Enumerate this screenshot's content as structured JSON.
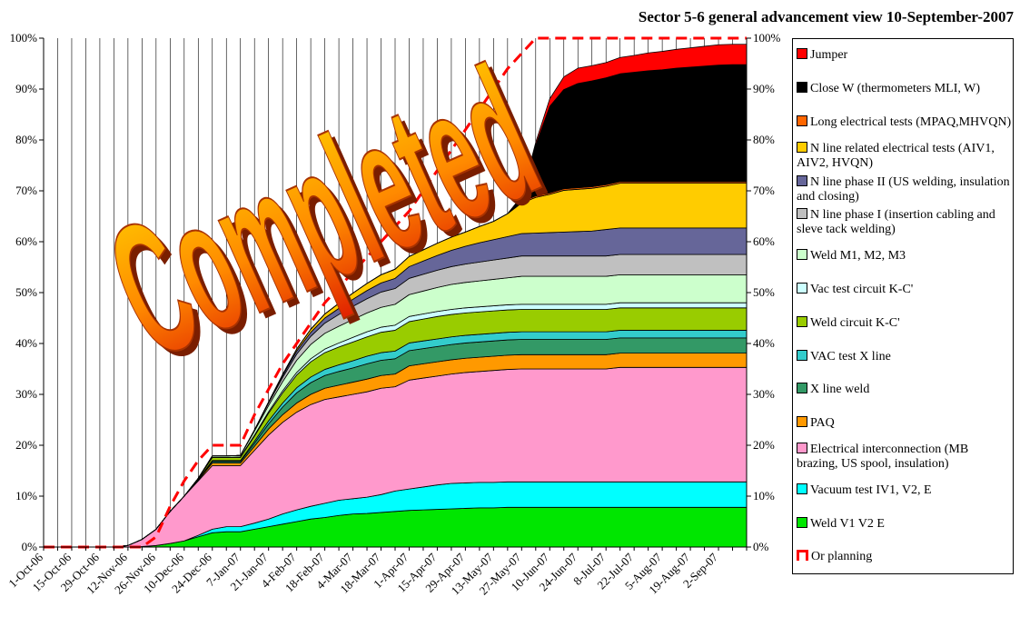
{
  "chart_data": {
    "type": "stacked_area",
    "title": "Sector 5-6 general advancement view 10-September-2007",
    "annotation": "Completed",
    "categories": [
      "1-Oct-06",
      null,
      "15-Oct-06",
      null,
      "29-Oct-06",
      null,
      "12-Nov-06",
      null,
      "26-Nov-06",
      null,
      "10-Dec-06",
      null,
      "24-Dec-06",
      null,
      "7-Jan-07",
      null,
      "21-Jan-07",
      null,
      "4-Feb-07",
      null,
      "18-Feb-07",
      null,
      "4-Mar-07",
      null,
      "18-Mar-07",
      null,
      "1-Apr-07",
      null,
      "15-Apr-07",
      null,
      "29-Apr-07",
      null,
      "13-May-07",
      null,
      "27-May-07",
      null,
      "10-Jun-07",
      null,
      "24-Jun-07",
      null,
      "8-Jul-07",
      null,
      "22-Jul-07",
      null,
      "5-Aug-07",
      null,
      "19-Aug-07",
      null,
      "2-Sep-07",
      null,
      null
    ],
    "ylim": [
      0,
      100
    ],
    "yticks": [
      {
        "value": 0,
        "label": "0%"
      },
      {
        "value": 10,
        "label": "10%"
      },
      {
        "value": 20,
        "label": "20%"
      },
      {
        "value": 30,
        "label": "30%"
      },
      {
        "value": 40,
        "label": "40%"
      },
      {
        "value": 50,
        "label": "50%"
      },
      {
        "value": 60,
        "label": "60%"
      },
      {
        "value": 70,
        "label": "70%"
      },
      {
        "value": 80,
        "label": "80%"
      },
      {
        "value": 90,
        "label": "90%"
      },
      {
        "value": 100,
        "label": "100%"
      }
    ],
    "y2lim": [
      0,
      100
    ],
    "y2ticks": [
      {
        "value": 0,
        "label": "0%"
      },
      {
        "value": 10,
        "label": "10%"
      },
      {
        "value": 20,
        "label": "20%"
      },
      {
        "value": 30,
        "label": "30%"
      },
      {
        "value": 40,
        "label": "40%"
      },
      {
        "value": 50,
        "label": "50%"
      },
      {
        "value": 60,
        "label": "60%"
      },
      {
        "value": 70,
        "label": "70%"
      },
      {
        "value": 80,
        "label": "80%"
      },
      {
        "value": 90,
        "label": "90%"
      },
      {
        "value": 100,
        "label": "100%"
      }
    ],
    "xgrid": true,
    "legend": "right",
    "series": [
      {
        "name": "Weld V1 V2 E",
        "color": "#00e600",
        "values": [
          0,
          0,
          0,
          0,
          0,
          0,
          0,
          0.1,
          0.3,
          0.7,
          1.2,
          2,
          2.8,
          3,
          3,
          3.5,
          4,
          4.5,
          5,
          5.5,
          5.8,
          6.2,
          6.5,
          6.6,
          6.8,
          7,
          7.2,
          7.3,
          7.4,
          7.5,
          7.6,
          7.7,
          7.7,
          7.8,
          7.8,
          7.8,
          7.8,
          7.8,
          7.8,
          7.8,
          7.8,
          7.8,
          7.8,
          7.8,
          7.8,
          7.8,
          7.8,
          7.8,
          7.8,
          7.8,
          7.8
        ]
      },
      {
        "name": "Vacuum test IV1, V2, E",
        "color": "#00ffff",
        "values": [
          0,
          0,
          0,
          0,
          0,
          0,
          0,
          0,
          0,
          0,
          0,
          0.3,
          0.7,
          1,
          1,
          1.2,
          1.5,
          2,
          2.3,
          2.5,
          2.8,
          3,
          3,
          3.2,
          3.5,
          4,
          4.2,
          4.5,
          4.8,
          5,
          5,
          5,
          5,
          5,
          5,
          5,
          5,
          5,
          5,
          5,
          5,
          5,
          5,
          5,
          5,
          5,
          5,
          5,
          5,
          5,
          5
        ]
      },
      {
        "name": "Electrical interconnection (MB brazing, US spool, insulation)",
        "color": "#ff99cc",
        "values": [
          0,
          0,
          0,
          0,
          0,
          0,
          0.3,
          1.4,
          3.2,
          6.3,
          8.8,
          10.7,
          12.5,
          12,
          12,
          14.3,
          16.5,
          18,
          19.2,
          20,
          20.4,
          20.3,
          20.5,
          20.7,
          20.9,
          20.5,
          21.4,
          21.4,
          21.4,
          21.5,
          21.7,
          21.8,
          22,
          22.1,
          22.2,
          22.2,
          22.2,
          22.2,
          22.2,
          22.2,
          22.2,
          22.5,
          22.5,
          22.5,
          22.5,
          22.5,
          22.5,
          22.5,
          22.5,
          22.5,
          22.5
        ]
      },
      {
        "name": "PAQ",
        "color": "#ff9900",
        "values": [
          0,
          0,
          0,
          0,
          0,
          0,
          0,
          0,
          0,
          0,
          0,
          0.2,
          0.5,
          0.5,
          0.5,
          0.8,
          1.2,
          1.5,
          1.8,
          2,
          2.2,
          2.3,
          2.4,
          2.5,
          2.5,
          2.5,
          2.8,
          2.8,
          2.8,
          2.8,
          2.8,
          2.8,
          2.8,
          2.8,
          2.8,
          2.8,
          2.8,
          2.8,
          2.8,
          2.8,
          2.8,
          2.8,
          2.8,
          2.8,
          2.8,
          2.8,
          2.8,
          2.8,
          2.8,
          2.8,
          2.8
        ]
      },
      {
        "name": "X line weld",
        "color": "#339966",
        "values": [
          0,
          0,
          0,
          0,
          0,
          0,
          0,
          0,
          0,
          0,
          0,
          0.1,
          0.3,
          0.3,
          0.3,
          0.6,
          1,
          1.5,
          2,
          2.3,
          2.5,
          2.7,
          2.8,
          3,
          3,
          3,
          3,
          3,
          3,
          3,
          3,
          3,
          3,
          3,
          3,
          3,
          3,
          3,
          3,
          3,
          3,
          3,
          3,
          3,
          3,
          3,
          3,
          3,
          3,
          3,
          3
        ]
      },
      {
        "name": "VAC test X line",
        "color": "#33cccc",
        "values": [
          0,
          0,
          0,
          0,
          0,
          0,
          0,
          0,
          0,
          0,
          0,
          0,
          0.2,
          0.2,
          0.2,
          0.4,
          0.6,
          0.8,
          1,
          1.1,
          1.2,
          1.3,
          1.4,
          1.5,
          1.5,
          1.5,
          1.5,
          1.5,
          1.5,
          1.5,
          1.5,
          1.5,
          1.5,
          1.5,
          1.5,
          1.5,
          1.5,
          1.5,
          1.5,
          1.5,
          1.5,
          1.5,
          1.5,
          1.5,
          1.5,
          1.5,
          1.5,
          1.5,
          1.5,
          1.5,
          1.5
        ]
      },
      {
        "name": "Weld circuit K-C'",
        "color": "#99cc00",
        "values": [
          0,
          0,
          0,
          0,
          0,
          0,
          0,
          0,
          0,
          0,
          0,
          0.2,
          0.6,
          0.6,
          0.6,
          1,
          1.5,
          2,
          2.5,
          3,
          3.3,
          3.5,
          3.7,
          3.8,
          4,
          4.1,
          4.2,
          4.3,
          4.4,
          4.4,
          4.4,
          4.4,
          4.4,
          4.4,
          4.4,
          4.4,
          4.4,
          4.4,
          4.4,
          4.4,
          4.4,
          4.4,
          4.4,
          4.4,
          4.4,
          4.4,
          4.4,
          4.4,
          4.4,
          4.4,
          4.4
        ]
      },
      {
        "name": "Vac test circuit K-C'",
        "color": "#ccffff",
        "values": [
          0,
          0,
          0,
          0,
          0,
          0,
          0,
          0,
          0,
          0,
          0,
          0,
          0,
          0,
          0.1,
          0.2,
          0.3,
          0.4,
          0.5,
          0.6,
          0.7,
          0.8,
          0.9,
          1,
          1,
          1,
          1,
          1,
          1,
          1,
          1,
          1,
          1,
          1,
          1,
          1,
          1,
          1,
          1,
          1,
          1,
          1,
          1,
          1,
          1,
          1,
          1,
          1,
          1,
          1,
          1
        ]
      },
      {
        "name": "Weld M1, M2, M3",
        "color": "#ccffcc",
        "values": [
          0,
          0,
          0,
          0,
          0,
          0,
          0,
          0,
          0,
          0,
          0,
          0,
          0.3,
          0.3,
          0.3,
          0.8,
          1.2,
          1.8,
          2.4,
          2.8,
          3.1,
          3.3,
          3.5,
          3.7,
          3.9,
          4.1,
          4.3,
          4.5,
          4.7,
          4.9,
          5,
          5.1,
          5.2,
          5.3,
          5.5,
          5.5,
          5.5,
          5.5,
          5.5,
          5.5,
          5.5,
          5.5,
          5.5,
          5.5,
          5.5,
          5.5,
          5.5,
          5.5,
          5.5,
          5.5,
          5.5
        ]
      },
      {
        "name": "N line phase I (insertion cabling and sleve tack welding)",
        "color": "#c0c0c0",
        "values": [
          0,
          0,
          0,
          0,
          0,
          0,
          0,
          0,
          0,
          0,
          0,
          0,
          0,
          0,
          0,
          0.2,
          0.5,
          0.8,
          1.2,
          1.6,
          2,
          2.3,
          2.6,
          2.8,
          3,
          3.1,
          3.2,
          3.3,
          3.4,
          3.5,
          3.6,
          3.7,
          3.8,
          3.9,
          4,
          4,
          4,
          4,
          4,
          4,
          4,
          4,
          4,
          4,
          4,
          4,
          4,
          4,
          4,
          4,
          4
        ]
      },
      {
        "name": "N line phase II (US welding, insulation and closing)",
        "color": "#666699",
        "values": [
          0,
          0,
          0,
          0,
          0,
          0,
          0,
          0,
          0,
          0,
          0,
          0,
          0,
          0,
          0,
          0,
          0.2,
          0.4,
          0.6,
          0.8,
          1,
          1.2,
          1.4,
          1.6,
          1.8,
          2,
          2.3,
          2.6,
          2.9,
          3.2,
          3.5,
          3.8,
          4,
          4.2,
          4.4,
          4.5,
          4.6,
          4.7,
          4.8,
          4.9,
          5.2,
          5.2,
          5.2,
          5.2,
          5.2,
          5.2,
          5.2,
          5.2,
          5.2,
          5.2,
          5.2
        ]
      },
      {
        "name": "N line related electrical tests (AIV1, AIV2, HVQN)",
        "color": "#ffcc00",
        "values": [
          0,
          0,
          0,
          0,
          0,
          0,
          0,
          0,
          0,
          0,
          0,
          0,
          0,
          0,
          0,
          0,
          0,
          0.2,
          0.4,
          0.6,
          0.8,
          1,
          1.2,
          1.4,
          1.6,
          1.8,
          2,
          2.2,
          2.4,
          2.6,
          2.8,
          3.2,
          3.6,
          4.5,
          6,
          7,
          7.5,
          8.2,
          8.3,
          8.4,
          8.5,
          8.8,
          8.8,
          8.8,
          8.8,
          8.8,
          8.8,
          8.8,
          8.8,
          8.8,
          8.8
        ]
      },
      {
        "name": "Long electrical tests (MPAQ,MHVQN)",
        "color": "#ff6600",
        "values": [
          0,
          0,
          0,
          0,
          0,
          0,
          0,
          0,
          0,
          0,
          0,
          0,
          0,
          0,
          0,
          0,
          0,
          0,
          0,
          0,
          0,
          0,
          0,
          0,
          0,
          0,
          0,
          0,
          0,
          0,
          0,
          0,
          0,
          0,
          0.3,
          0.3,
          0.3,
          0.3,
          0.3,
          0.3,
          0.3,
          0.3,
          0.3,
          0.3,
          0.3,
          0.3,
          0.3,
          0.3,
          0.3,
          0.3,
          0.3
        ]
      },
      {
        "name": "Close W (thermometers MLI, W)",
        "color": "#000000",
        "values": [
          0,
          0,
          0,
          0,
          0,
          0,
          0,
          0,
          0,
          0,
          0,
          0,
          0,
          0,
          0,
          0,
          0,
          0,
          0,
          0,
          0,
          0,
          0,
          0,
          0,
          0,
          0,
          0,
          0,
          0,
          0,
          0,
          0,
          0,
          1,
          10,
          17,
          19.5,
          20.5,
          20.8,
          21,
          21.2,
          21.5,
          21.8,
          22,
          22.3,
          22.5,
          22.7,
          22.9,
          23,
          23
        ]
      },
      {
        "name": "Jumper",
        "color": "#ff0000",
        "values": [
          0,
          0,
          0,
          0,
          0,
          0,
          0,
          0,
          0,
          0,
          0,
          0,
          0,
          0,
          0,
          0,
          0,
          0,
          0,
          0,
          0,
          0,
          0,
          0,
          0,
          0,
          0,
          0,
          0,
          0,
          0,
          0,
          0,
          0,
          0,
          0.5,
          1.5,
          2.5,
          3,
          3,
          3,
          3.2,
          3.3,
          3.5,
          3.6,
          3.7,
          3.8,
          3.9,
          4,
          4,
          4
        ]
      }
    ],
    "planning": {
      "name": "Or planning",
      "color": "#ff0000",
      "values": [
        0,
        0,
        0,
        0,
        0,
        0,
        0,
        0,
        2,
        8,
        13,
        17,
        20,
        20,
        20,
        26,
        31,
        36,
        40,
        44,
        48,
        51,
        54,
        57,
        60,
        63,
        66,
        70,
        74,
        78,
        82,
        86,
        90,
        94,
        97,
        100,
        100,
        100,
        100,
        100,
        100,
        100,
        100,
        100,
        100,
        100,
        100,
        100,
        100,
        100,
        100
      ]
    }
  }
}
